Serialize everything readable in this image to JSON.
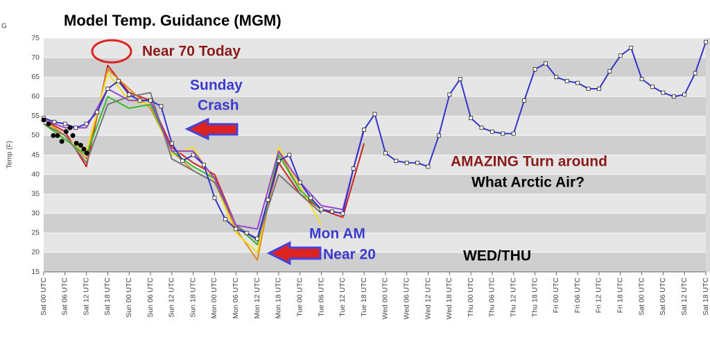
{
  "chart_data": {
    "type": "line",
    "title": "Model Temp. Guidance (MGM)",
    "corner_label": "G",
    "y_label": "Temp (F)",
    "annotations": [
      "Near 70 Today",
      "Sunday",
      "Crash",
      "AMAZING  Turn around",
      "What Arctic Air?",
      "Mon AM",
      "Near 20",
      "WED/THU"
    ],
    "xlim": [
      0,
      186
    ],
    "ylim": [
      15,
      75
    ],
    "yticks": [
      15,
      20,
      25,
      30,
      35,
      40,
      45,
      50,
      55,
      60,
      65,
      70,
      75
    ],
    "xticks": [
      {
        "value": 0,
        "label": "Sat 00 UTC"
      },
      {
        "value": 6,
        "label": "Sat 06 UTC"
      },
      {
        "value": 12,
        "label": "Sat 12 UTC"
      },
      {
        "value": 18,
        "label": "Sat 18 UTC"
      },
      {
        "value": 24,
        "label": "Sun 00 UTC"
      },
      {
        "value": 30,
        "label": "Sun 06 UTC"
      },
      {
        "value": 36,
        "label": "Sun 12 UTC"
      },
      {
        "value": 42,
        "label": "Sun 18 UTC"
      },
      {
        "value": 48,
        "label": "Mon 00 UTC"
      },
      {
        "value": 54,
        "label": "Mon 06 UTC"
      },
      {
        "value": 60,
        "label": "Mon 12 UTC"
      },
      {
        "value": 66,
        "label": "Mon 18 UTC"
      },
      {
        "value": 72,
        "label": "Tue 00 UTC"
      },
      {
        "value": 78,
        "label": "Tue 06 UTC"
      },
      {
        "value": 84,
        "label": "Tue 12 UTC"
      },
      {
        "value": 90,
        "label": "Tue 18 UTC"
      },
      {
        "value": 96,
        "label": "Wed 00 UTC"
      },
      {
        "value": 102,
        "label": "Wed 06 UTC"
      },
      {
        "value": 108,
        "label": "Wed 12 UTC"
      },
      {
        "value": 114,
        "label": "Wed 18 UTC"
      },
      {
        "value": 120,
        "label": "Thu 00 UTC"
      },
      {
        "value": 126,
        "label": "Thu 06 UTC"
      },
      {
        "value": 132,
        "label": "Thu 12 UTC"
      },
      {
        "value": 138,
        "label": "Thu 18 UTC"
      },
      {
        "value": 144,
        "label": "Fri 00 UTC"
      },
      {
        "value": 150,
        "label": "Fri 06 UTC"
      },
      {
        "value": 156,
        "label": "Fri 12 UTC"
      },
      {
        "value": 162,
        "label": "Fri 18 UTC"
      },
      {
        "value": 168,
        "label": "Sat 00 UTC"
      },
      {
        "value": 174,
        "label": "Sat 06 UTC"
      },
      {
        "value": 180,
        "label": "Sat 12 UTC"
      },
      {
        "value": 186,
        "label": "Sat 18 UTC"
      }
    ],
    "series": [
      {
        "color": "#cc2222",
        "line": true,
        "marker": "none",
        "x": [
          0,
          6,
          12,
          18,
          24,
          30,
          36,
          42,
          48,
          54,
          60,
          66,
          72,
          78,
          84,
          90
        ],
        "values": [
          54,
          51,
          42,
          68,
          61,
          59,
          47,
          43,
          40,
          27,
          22,
          43,
          35,
          31,
          29,
          48
        ]
      },
      {
        "color": "#e08a1e",
        "line": true,
        "marker": "none",
        "x": [
          0,
          6,
          12,
          18,
          24,
          30,
          36,
          42,
          48,
          54,
          60,
          66,
          72,
          78,
          84,
          90
        ],
        "values": [
          54,
          50,
          44,
          67,
          62,
          57,
          46,
          41,
          38,
          26,
          18,
          46,
          36,
          31,
          30,
          null
        ]
      },
      {
        "color": "#f0e020",
        "line": true,
        "marker": "none",
        "x": [
          0,
          6,
          12,
          18,
          24,
          30,
          36,
          42,
          48,
          54,
          60,
          66,
          72,
          78,
          84,
          90
        ],
        "values": [
          54,
          49,
          46,
          66,
          59,
          58,
          45,
          47,
          38,
          25,
          20,
          47,
          37,
          27,
          null,
          null
        ]
      },
      {
        "color": "#33bb33",
        "line": true,
        "marker": "none",
        "x": [
          0,
          6,
          12,
          18,
          24,
          30,
          36,
          42,
          48,
          54,
          60,
          66,
          72,
          78,
          84,
          90
        ],
        "values": [
          53,
          49,
          45,
          60,
          57,
          58,
          46,
          42,
          39,
          27,
          22,
          45,
          36,
          31,
          null,
          null
        ]
      },
      {
        "color": "#777777",
        "line": true,
        "marker": "none",
        "x": [
          0,
          6,
          12,
          18,
          24,
          30,
          36,
          42,
          48,
          54,
          60,
          66,
          72,
          78,
          84,
          90
        ],
        "values": [
          53,
          50,
          43,
          58,
          60,
          61,
          44,
          41,
          38,
          27,
          23,
          40,
          35,
          30,
          null,
          null
        ]
      },
      {
        "color": "#9944cc",
        "line": true,
        "marker": "none",
        "x": [
          0,
          6,
          12,
          18,
          24,
          30,
          36,
          42,
          48,
          54,
          60,
          66,
          72,
          78,
          84,
          90
        ],
        "values": [
          54,
          52,
          52,
          62,
          59,
          59,
          46,
          46,
          39,
          27,
          26,
          46,
          38,
          32,
          31,
          52
        ]
      },
      {
        "color": "#3333cc",
        "line": true,
        "marker": "square",
        "x": [
          0,
          3,
          6,
          9,
          12,
          15,
          18,
          21,
          24,
          27,
          30,
          33,
          36,
          39,
          42,
          45,
          48,
          51,
          54,
          57,
          60,
          63,
          66,
          69,
          72,
          75,
          78,
          81,
          84,
          87,
          90,
          93,
          96,
          99,
          102,
          105,
          108,
          111,
          114,
          117,
          120,
          123,
          126,
          129,
          132,
          135,
          138,
          141,
          144,
          147,
          150,
          153,
          156,
          159,
          162,
          165,
          168,
          171,
          174,
          177,
          180,
          183,
          186
        ],
        "values": [
          54.5,
          53.5,
          53,
          52,
          53,
          56,
          62,
          64,
          60.5,
          59,
          59,
          57.5,
          48,
          43.5,
          45,
          42.5,
          34,
          28.5,
          26,
          25,
          23.5,
          33.5,
          43.5,
          45,
          38,
          34,
          31,
          30.5,
          30,
          41.5,
          51.5,
          55.5,
          45.5,
          43.5,
          43,
          43,
          42,
          50,
          60.5,
          64.5,
          54.5,
          52,
          51,
          50.5,
          50.5,
          59,
          67,
          68.5,
          65,
          64,
          63.5,
          62,
          62,
          66.5,
          70.5,
          72.5,
          64.5,
          62.5,
          61,
          60,
          60.5,
          66,
          74
        ]
      },
      {
        "color": "#000000",
        "line": false,
        "marker": "dot",
        "x": [
          0,
          1.4,
          2.7,
          3.9,
          5.1,
          6.3,
          7.4,
          8.2,
          9.2,
          10.4,
          11.3,
          12.1
        ],
        "values": [
          54,
          53,
          50,
          50,
          48.5,
          51,
          52,
          50,
          48,
          47.5,
          46.5,
          45.5
        ]
      }
    ]
  }
}
